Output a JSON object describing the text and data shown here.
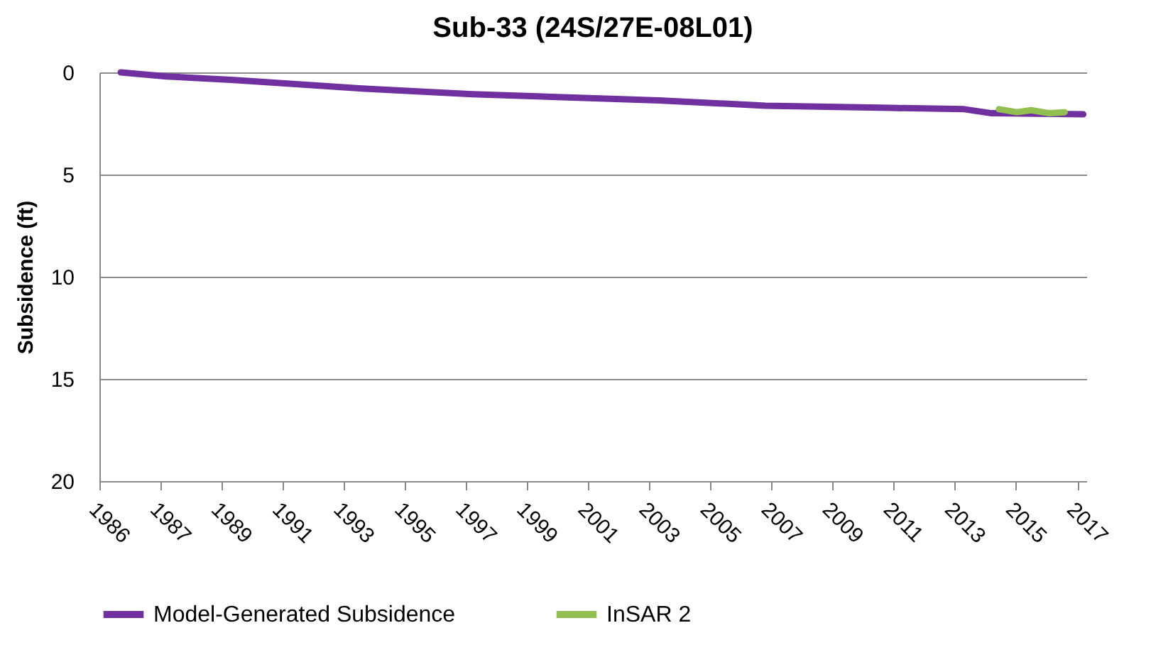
{
  "chart_data": {
    "type": "line",
    "title": "Sub-33 (24S/27E-08L01)",
    "ylabel": "Subsidence (ft)",
    "xlim": [
      "1986-01-01",
      "2018-04-20"
    ],
    "xticks": [
      {
        "value": "1986-01-01",
        "label": "1986"
      },
      {
        "value": "1987-12-31",
        "label": "1987"
      },
      {
        "value": "1989-12-31",
        "label": "1989"
      },
      {
        "value": "1991-12-31",
        "label": "1991"
      },
      {
        "value": "1993-12-31",
        "label": "1993"
      },
      {
        "value": "1995-12-31",
        "label": "1995"
      },
      {
        "value": "1997-12-31",
        "label": "1997"
      },
      {
        "value": "1999-12-31",
        "label": "1999"
      },
      {
        "value": "2001-12-31",
        "label": "2001"
      },
      {
        "value": "2003-12-31",
        "label": "2003"
      },
      {
        "value": "2005-12-31",
        "label": "2005"
      },
      {
        "value": "2007-12-31",
        "label": "2007"
      },
      {
        "value": "2009-12-31",
        "label": "2009"
      },
      {
        "value": "2011-12-31",
        "label": "2011"
      },
      {
        "value": "2013-12-31",
        "label": "2013"
      },
      {
        "value": "2015-12-31",
        "label": "2015"
      },
      {
        "value": "2017-12-31",
        "label": "2017"
      }
    ],
    "ylim": [
      20,
      0
    ],
    "yticks": [
      0,
      5,
      10,
      15,
      20
    ],
    "grid": "y",
    "legend": "bottom",
    "marker": "none",
    "line_style": "solid",
    "series": [
      {
        "name": "Model-Generated Subsidence",
        "color": "#7030a0",
        "x": [
          "1986-09-13",
          "1988-03-14",
          "1990-05-27",
          "1994-09-13",
          "1998-03-14",
          "2004-04-20",
          "2007-10-20",
          "2011-11-24",
          "2014-04-20",
          "2015-03-14",
          "2018-03-14"
        ],
        "values": [
          0,
          0.2,
          0.37,
          0.8,
          1.07,
          1.37,
          1.63,
          1.74,
          1.8,
          2.0,
          2.05
        ]
      },
      {
        "name": "InSAR 2",
        "color": "#92c050",
        "x": [
          "2015-06-10",
          "2016-01-12",
          "2016-06-28",
          "2017-02-03",
          "2017-08-04"
        ],
        "values": [
          1.8,
          1.95,
          1.85,
          2.0,
          1.95
        ]
      }
    ]
  }
}
